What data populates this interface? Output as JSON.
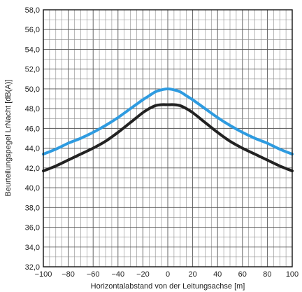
{
  "chart_data": {
    "type": "line",
    "title": "",
    "xlabel": "Horizontalabstand von der Leitungsachse [m]",
    "ylabel": "Beurteilungspegel LrNacht [dB(A)]",
    "xlim": [
      -100,
      100
    ],
    "ylim": [
      32,
      58
    ],
    "grid": true,
    "legend": "none",
    "x_ticks": [
      -100,
      -80,
      -60,
      -40,
      -20,
      0,
      20,
      40,
      60,
      80,
      100
    ],
    "x_tick_labels": [
      "−100",
      "−80",
      "−60",
      "−40",
      "−20",
      "0",
      "20",
      "40",
      "60",
      "80",
      "100"
    ],
    "y_ticks": [
      32,
      34,
      36,
      38,
      40,
      42,
      44,
      46,
      48,
      50,
      52,
      54,
      56,
      58
    ],
    "y_tick_labels": [
      "32,0",
      "34,0",
      "36,0",
      "38,0",
      "40,0",
      "42,0",
      "44,0",
      "46,0",
      "48,0",
      "50,0",
      "52,0",
      "54,0",
      "56,0",
      "58,0"
    ],
    "series": [
      {
        "color": "#2e9be0",
        "x": [
          -100,
          -90,
          -80,
          -70,
          -60,
          -50,
          -40,
          -30,
          -20,
          -15,
          -10,
          -5,
          0,
          5,
          10,
          15,
          20,
          30,
          40,
          50,
          60,
          70,
          80,
          90,
          100
        ],
        "y": [
          43.4,
          43.9,
          44.5,
          45.0,
          45.6,
          46.3,
          47.1,
          48.0,
          48.9,
          49.3,
          49.7,
          49.9,
          50.0,
          49.9,
          49.7,
          49.3,
          48.9,
          48.0,
          47.1,
          46.3,
          45.6,
          45.0,
          44.5,
          43.9,
          43.4
        ]
      },
      {
        "color": "#222222",
        "x": [
          -100,
          -90,
          -80,
          -70,
          -60,
          -50,
          -40,
          -30,
          -20,
          -15,
          -10,
          -5,
          0,
          5,
          10,
          15,
          20,
          30,
          40,
          50,
          60,
          70,
          80,
          90,
          100
        ],
        "y": [
          41.7,
          42.2,
          42.8,
          43.4,
          44.0,
          44.7,
          45.6,
          46.6,
          47.6,
          48.0,
          48.3,
          48.4,
          48.4,
          48.4,
          48.3,
          48.0,
          47.6,
          46.6,
          45.6,
          44.7,
          44.0,
          43.4,
          42.8,
          42.2,
          41.7
        ]
      }
    ]
  }
}
